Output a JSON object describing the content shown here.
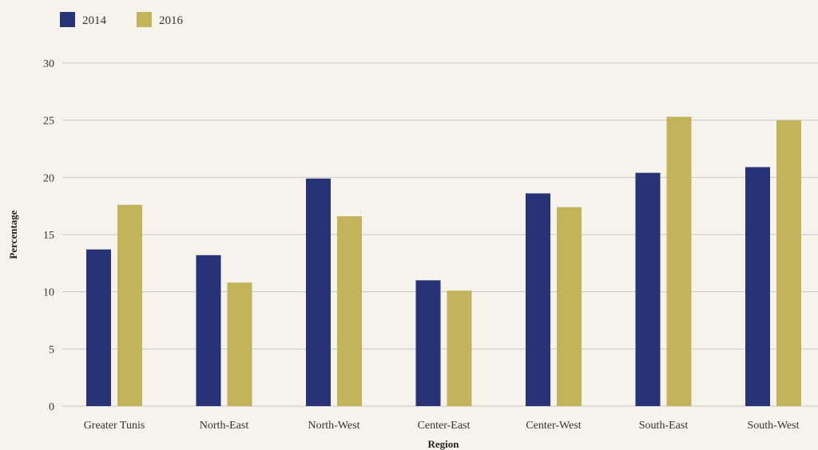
{
  "chart_data": {
    "type": "bar",
    "categories": [
      "Greater Tunis",
      "North-East",
      "North-West",
      "Center-East",
      "Center-West",
      "South-East",
      "South-West"
    ],
    "series": [
      {
        "name": "2014",
        "color": "#283276",
        "values": [
          13.7,
          13.2,
          19.9,
          11.0,
          18.6,
          20.4,
          20.9
        ]
      },
      {
        "name": "2016",
        "color": "#c2b45b",
        "values": [
          17.6,
          10.8,
          16.6,
          10.1,
          17.4,
          25.3,
          25.0
        ]
      }
    ],
    "xlabel": "Region",
    "ylabel": "Percentage",
    "ylim": [
      0,
      30
    ],
    "yticks": [
      0,
      5,
      10,
      15,
      20,
      25,
      30
    ],
    "grid": true,
    "gridColor": "#c8c8c8",
    "legend_position": "top-left"
  }
}
